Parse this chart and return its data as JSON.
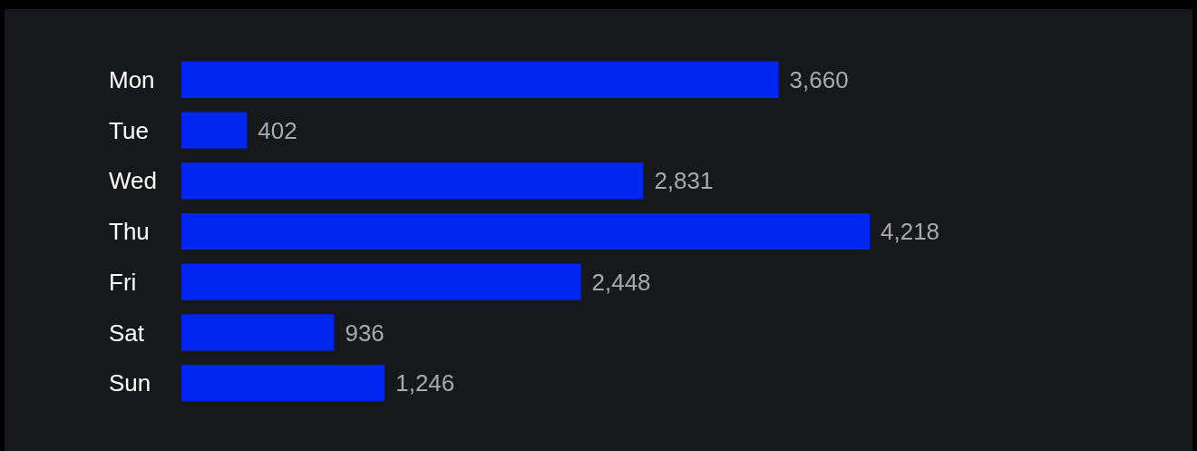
{
  "chart_data": {
    "type": "bar",
    "orientation": "horizontal",
    "categories": [
      "Mon",
      "Tue",
      "Wed",
      "Thu",
      "Fri",
      "Sat",
      "Sun"
    ],
    "values": [
      3660,
      402,
      2831,
      4218,
      2448,
      936,
      1246
    ],
    "value_labels": [
      "3,660",
      "402",
      "2,831",
      "4,218",
      "2,448",
      "936",
      "1,246"
    ],
    "color": "#0027f2"
  }
}
